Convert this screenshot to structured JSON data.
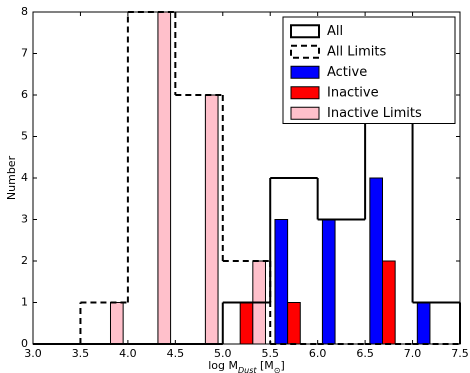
{
  "chart_data": {
    "type": "histogram",
    "xlabel": [
      "log M",
      "Dust",
      " [M",
      "⊙",
      "]"
    ],
    "ylabel": "Number",
    "bins": [
      3.0,
      3.5,
      4.0,
      4.5,
      5.0,
      5.5,
      6.0,
      6.5,
      7.0,
      7.5
    ],
    "series": [
      {
        "name": "All",
        "style": "step",
        "dash": false,
        "color": "#000000",
        "values": [
          0,
          0,
          0,
          0,
          1,
          4,
          3,
          6,
          1
        ]
      },
      {
        "name": "All Limits",
        "style": "step",
        "dash": true,
        "color": "#000000",
        "values": [
          0,
          1,
          8,
          6,
          2,
          0,
          0,
          0,
          0
        ]
      },
      {
        "name": "Active",
        "style": "bar",
        "color": "#0000ff",
        "values": [
          0,
          0,
          0,
          0,
          0,
          3,
          3,
          4,
          1
        ]
      },
      {
        "name": "Inactive",
        "style": "bar",
        "color": "#ff0000",
        "values": [
          0,
          0,
          0,
          0,
          1,
          1,
          0,
          2,
          0
        ]
      },
      {
        "name": "Inactive Limits",
        "style": "bar",
        "color": "#ffc0cb",
        "values": [
          0,
          1,
          8,
          6,
          2,
          0,
          0,
          0,
          0
        ]
      }
    ],
    "xlim": [
      3.0,
      7.5
    ],
    "xticks": [
      {
        "value": 3.0,
        "label": "3.0"
      },
      {
        "value": 3.5,
        "label": "3.5"
      },
      {
        "value": 4.0,
        "label": "4.0"
      },
      {
        "value": 4.5,
        "label": "4.5"
      },
      {
        "value": 5.0,
        "label": "5.0"
      },
      {
        "value": 5.5,
        "label": "5.5"
      },
      {
        "value": 6.0,
        "label": "6.0"
      },
      {
        "value": 6.5,
        "label": "6.5"
      },
      {
        "value": 7.0,
        "label": "7.0"
      },
      {
        "value": 7.5,
        "label": "7.5"
      }
    ],
    "ylim": [
      0,
      8
    ],
    "yticks": [
      0,
      1,
      2,
      3,
      4,
      5,
      6,
      7,
      8
    ],
    "legend": "upper right"
  }
}
